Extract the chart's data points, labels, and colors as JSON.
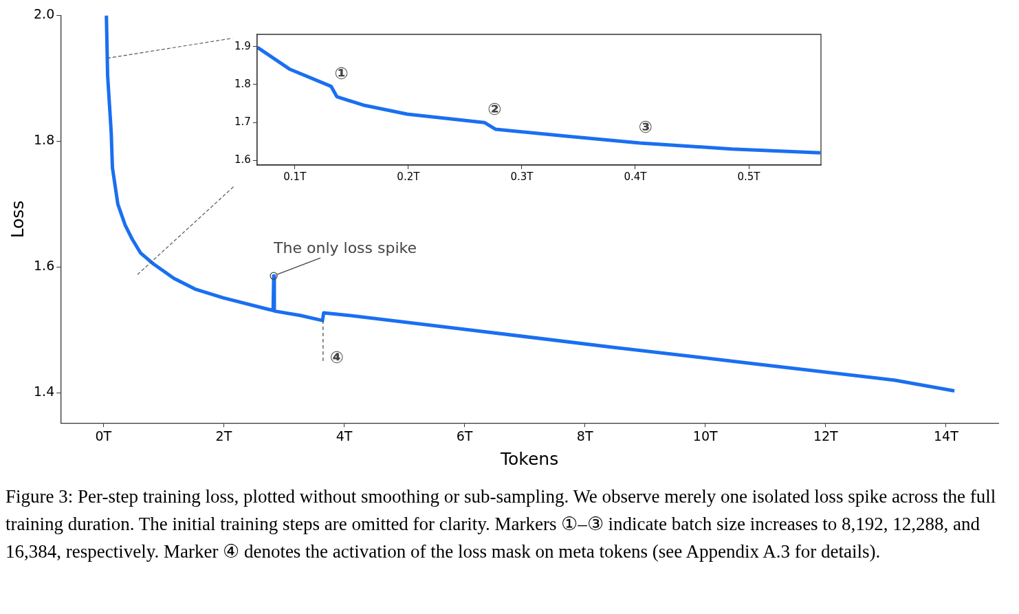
{
  "chart_data": [
    {
      "type": "line",
      "xlabel": "Tokens",
      "ylabel": "Loss",
      "xlim": [
        -0.71,
        14.87
      ],
      "ylim": [
        1.352,
        2.0
      ],
      "xticks": [
        {
          "value": 0,
          "label": "0T"
        },
        {
          "value": 2,
          "label": "2T"
        },
        {
          "value": 4,
          "label": "4T"
        },
        {
          "value": 6,
          "label": "6T"
        },
        {
          "value": 8,
          "label": "8T"
        },
        {
          "value": 10,
          "label": "10T"
        },
        {
          "value": 12,
          "label": "12T"
        },
        {
          "value": 14,
          "label": "14T"
        }
      ],
      "yticks": [
        1.4,
        1.6,
        1.8,
        {
          "value": 2,
          "label": "2.0"
        }
      ],
      "grid": false,
      "legend": false,
      "marker": "none",
      "line_style": "solid",
      "series": [
        {
          "color": "#1a6ff0",
          "x": [
            0.05,
            0.07,
            0.13,
            0.15,
            0.24,
            0.36,
            0.48,
            0.62,
            0.83,
            1.17,
            1.52,
            1.99,
            2.69,
            2.82,
            2.83,
            2.84,
            3.27,
            3.64,
            3.66,
            4.08,
            6.17,
            8.5,
            10.83,
            13.15,
            14.14
          ],
          "values": [
            2.0,
            1.905,
            1.814,
            1.758,
            1.7,
            1.667,
            1.644,
            1.622,
            1.605,
            1.582,
            1.565,
            1.551,
            1.534,
            1.531,
            1.586,
            1.53,
            1.523,
            1.515,
            1.527,
            1.523,
            1.499,
            1.472,
            1.446,
            1.42,
            1.403
          ]
        }
      ],
      "annotations": [
        {
          "text": "The only loss spike",
          "x": 2.83,
          "y": 1.586
        },
        {
          "text": "④",
          "x": 3.65,
          "y": 1.515
        },
        "Figure 3: Per-step training loss, plotted without smoothing or sub-sampling. We observe merely one isolated loss spike across the full training duration. The initial training steps are omitted for clarity. Markers ①–③ indicate batch size increases to 8,192, 12,288, and 16,384, respectively. Marker ④ denotes the activation of the loss mask on meta tokens (see Appendix A.3 for details)."
      ]
    },
    {
      "type": "line",
      "xlim": [
        0.0667,
        0.5636
      ],
      "ylim": [
        1.588,
        1.932
      ],
      "xticks": [
        {
          "value": 0.1,
          "label": "0.1T"
        },
        {
          "value": 0.2,
          "label": "0.2T"
        },
        {
          "value": 0.3,
          "label": "0.3T"
        },
        {
          "value": 0.4,
          "label": "0.4T"
        },
        {
          "value": 0.5,
          "label": "0.5T"
        }
      ],
      "yticks": [
        1.6,
        1.7,
        1.8,
        1.9
      ],
      "grid": false,
      "legend": false,
      "marker": "none",
      "line_style": "solid",
      "series": [
        {
          "color": "#1a6ff0",
          "x": [
            0.067,
            0.0957,
            0.132,
            0.137,
            0.16,
            0.199,
            0.267,
            0.277,
            0.339,
            0.404,
            0.485,
            0.563
          ],
          "values": [
            1.898,
            1.84,
            1.795,
            1.768,
            1.746,
            1.722,
            1.7,
            1.682,
            1.664,
            1.646,
            1.63,
            1.62
          ]
        }
      ],
      "annotations": [
        {
          "text": "①",
          "x": 0.132,
          "y": 1.795
        },
        {
          "text": "②",
          "x": 0.267,
          "y": 1.7
        },
        {
          "text": "③",
          "x": 0.4,
          "y": 1.654
        }
      ]
    }
  ]
}
